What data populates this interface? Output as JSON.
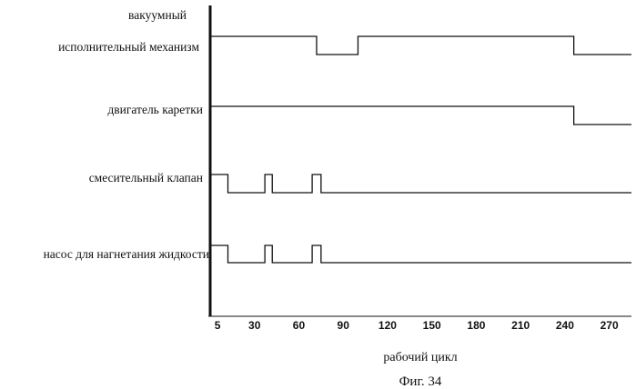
{
  "chart_data": {
    "type": "line",
    "title": "",
    "xlabel": "рабочий цикл",
    "caption": "Фиг. 34",
    "x_ticks": [
      5,
      30,
      60,
      90,
      120,
      150,
      180,
      210,
      240,
      270
    ],
    "xlim": [
      0,
      285
    ],
    "lanes": [
      {
        "name_lines": [
          "вакуумный",
          "исполнительный механизм"
        ],
        "steps": [
          [
            0,
            1
          ],
          [
            72,
            0
          ],
          [
            100,
            1
          ],
          [
            246,
            0
          ],
          [
            285,
            0
          ]
        ]
      },
      {
        "name_lines": [
          "двигатель каретки"
        ],
        "steps": [
          [
            0,
            1
          ],
          [
            246,
            0
          ],
          [
            285,
            0
          ]
        ]
      },
      {
        "name_lines": [
          "смесительный клапан"
        ],
        "steps": [
          [
            0,
            1
          ],
          [
            12,
            0
          ],
          [
            37,
            1
          ],
          [
            42,
            0
          ],
          [
            69,
            1
          ],
          [
            75,
            0
          ],
          [
            285,
            0
          ]
        ]
      },
      {
        "name_lines": [
          "насос для нагнетания жидкости"
        ],
        "steps": [
          [
            0,
            1
          ],
          [
            12,
            0
          ],
          [
            37,
            1
          ],
          [
            42,
            0
          ],
          [
            69,
            1
          ],
          [
            75,
            0
          ],
          [
            285,
            0
          ]
        ]
      }
    ]
  }
}
